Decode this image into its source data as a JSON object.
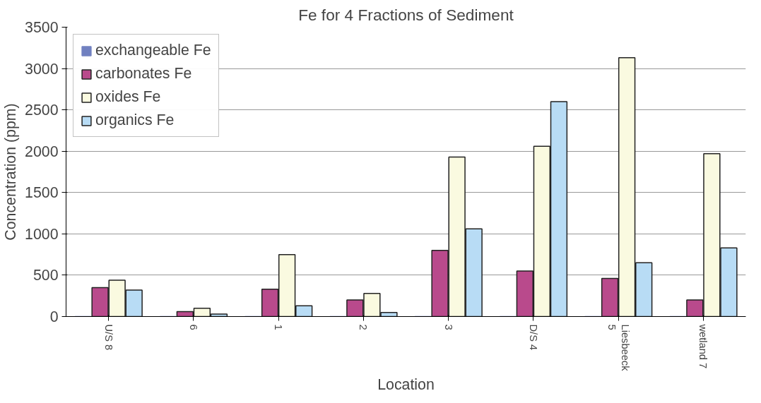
{
  "chart_data": {
    "type": "bar",
    "title": "Fe for 4 Fractions of Sediment",
    "xlabel": "Location",
    "ylabel": "Concentration (ppm)",
    "categories": [
      "U/S 8",
      "6",
      "1",
      "2",
      "3",
      "D/S 4",
      "Liesbeeck\n5",
      "wetland 7"
    ],
    "series": [
      {
        "name": "exchangeable Fe",
        "color": "#7080c0",
        "values": [
          0,
          0,
          0,
          0,
          0,
          0,
          0,
          0
        ]
      },
      {
        "name": "carbonates Fe",
        "color": "#b94a8c",
        "values": [
          350,
          60,
          330,
          200,
          800,
          550,
          460,
          200
        ]
      },
      {
        "name": "oxides Fe",
        "color": "#fafae0",
        "values": [
          440,
          100,
          750,
          280,
          1930,
          2060,
          3130,
          1970
        ]
      },
      {
        "name": "organics Fe",
        "color": "#b8dcf5",
        "values": [
          320,
          30,
          130,
          50,
          1060,
          2600,
          650,
          830
        ]
      }
    ],
    "ylim": [
      0,
      3500
    ],
    "yticks": [
      0,
      500,
      1000,
      1500,
      2000,
      2500,
      3000,
      3500
    ],
    "grid": "y",
    "legend": "top left"
  }
}
